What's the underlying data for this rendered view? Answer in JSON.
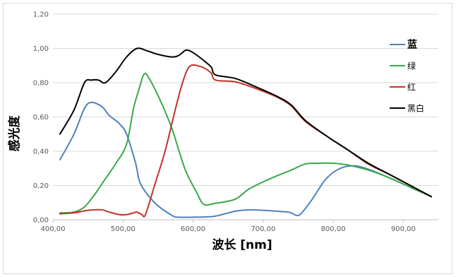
{
  "chart_data": {
    "type": "line",
    "xlabel": "波长 [nm]",
    "ylabel": "感光度",
    "xlim": [
      400,
      950
    ],
    "ylim": [
      0,
      1.2
    ],
    "x_ticks": [
      "400,00",
      "500,00",
      "600,00",
      "700,00",
      "800,00",
      "900,00"
    ],
    "y_ticks": [
      "0,00",
      "0,20",
      "0,40",
      "0,60",
      "0,80",
      "1,00",
      "1,20"
    ],
    "grid": "horizontal",
    "legend_position": "right",
    "series": [
      {
        "name": "蓝",
        "color": "#4f81bd",
        "points": [
          [
            410,
            0.35
          ],
          [
            430,
            0.5
          ],
          [
            445,
            0.65
          ],
          [
            455,
            0.685
          ],
          [
            470,
            0.66
          ],
          [
            480,
            0.61
          ],
          [
            495,
            0.56
          ],
          [
            505,
            0.5
          ],
          [
            518,
            0.33
          ],
          [
            525,
            0.21
          ],
          [
            545,
            0.1
          ],
          [
            570,
            0.025
          ],
          [
            580,
            0.015
          ],
          [
            600,
            0.015
          ],
          [
            630,
            0.02
          ],
          [
            660,
            0.05
          ],
          [
            680,
            0.058
          ],
          [
            700,
            0.055
          ],
          [
            720,
            0.05
          ],
          [
            738,
            0.043
          ],
          [
            748,
            0.025
          ],
          [
            755,
            0.04
          ],
          [
            770,
            0.12
          ],
          [
            790,
            0.24
          ],
          [
            810,
            0.3
          ],
          [
            830,
            0.315
          ],
          [
            850,
            0.295
          ],
          [
            880,
            0.245
          ],
          [
            910,
            0.19
          ],
          [
            940,
            0.135
          ]
        ]
      },
      {
        "name": "绿",
        "color": "#3aa84a",
        "points": [
          [
            410,
            0.04
          ],
          [
            430,
            0.045
          ],
          [
            445,
            0.075
          ],
          [
            460,
            0.15
          ],
          [
            475,
            0.24
          ],
          [
            490,
            0.33
          ],
          [
            505,
            0.44
          ],
          [
            515,
            0.65
          ],
          [
            522,
            0.75
          ],
          [
            530,
            0.85
          ],
          [
            538,
            0.82
          ],
          [
            555,
            0.68
          ],
          [
            570,
            0.53
          ],
          [
            580,
            0.4
          ],
          [
            590,
            0.28
          ],
          [
            605,
            0.16
          ],
          [
            615,
            0.09
          ],
          [
            630,
            0.095
          ],
          [
            660,
            0.12
          ],
          [
            680,
            0.18
          ],
          [
            710,
            0.24
          ],
          [
            740,
            0.29
          ],
          [
            760,
            0.325
          ],
          [
            780,
            0.33
          ],
          [
            800,
            0.33
          ],
          [
            820,
            0.32
          ],
          [
            850,
            0.29
          ],
          [
            880,
            0.245
          ],
          [
            910,
            0.19
          ],
          [
            940,
            0.135
          ]
        ]
      },
      {
        "name": "红",
        "color": "#c0332c",
        "points": [
          [
            410,
            0.035
          ],
          [
            430,
            0.04
          ],
          [
            450,
            0.055
          ],
          [
            470,
            0.058
          ],
          [
            480,
            0.045
          ],
          [
            495,
            0.03
          ],
          [
            505,
            0.03
          ],
          [
            515,
            0.04
          ],
          [
            520,
            0.045
          ],
          [
            527,
            0.03
          ],
          [
            532,
            0.03
          ],
          [
            545,
            0.2
          ],
          [
            560,
            0.4
          ],
          [
            575,
            0.65
          ],
          [
            585,
            0.8
          ],
          [
            595,
            0.895
          ],
          [
            610,
            0.895
          ],
          [
            625,
            0.86
          ],
          [
            632,
            0.815
          ],
          [
            660,
            0.805
          ],
          [
            690,
            0.765
          ],
          [
            720,
            0.715
          ],
          [
            740,
            0.665
          ],
          [
            760,
            0.575
          ],
          [
            790,
            0.49
          ],
          [
            820,
            0.41
          ],
          [
            850,
            0.325
          ],
          [
            880,
            0.265
          ],
          [
            910,
            0.2
          ],
          [
            940,
            0.135
          ]
        ]
      },
      {
        "name": "黑白",
        "color": "#000000",
        "points": [
          [
            410,
            0.5
          ],
          [
            430,
            0.64
          ],
          [
            445,
            0.8
          ],
          [
            455,
            0.815
          ],
          [
            465,
            0.815
          ],
          [
            475,
            0.8
          ],
          [
            490,
            0.865
          ],
          [
            505,
            0.95
          ],
          [
            520,
            1.0
          ],
          [
            535,
            0.985
          ],
          [
            550,
            0.965
          ],
          [
            570,
            0.95
          ],
          [
            580,
            0.96
          ],
          [
            590,
            0.99
          ],
          [
            600,
            0.975
          ],
          [
            615,
            0.93
          ],
          [
            626,
            0.89
          ],
          [
            632,
            0.845
          ],
          [
            660,
            0.825
          ],
          [
            690,
            0.775
          ],
          [
            720,
            0.72
          ],
          [
            740,
            0.67
          ],
          [
            760,
            0.58
          ],
          [
            790,
            0.49
          ],
          [
            820,
            0.41
          ],
          [
            850,
            0.33
          ],
          [
            880,
            0.265
          ],
          [
            910,
            0.2
          ],
          [
            940,
            0.135
          ]
        ]
      }
    ]
  }
}
